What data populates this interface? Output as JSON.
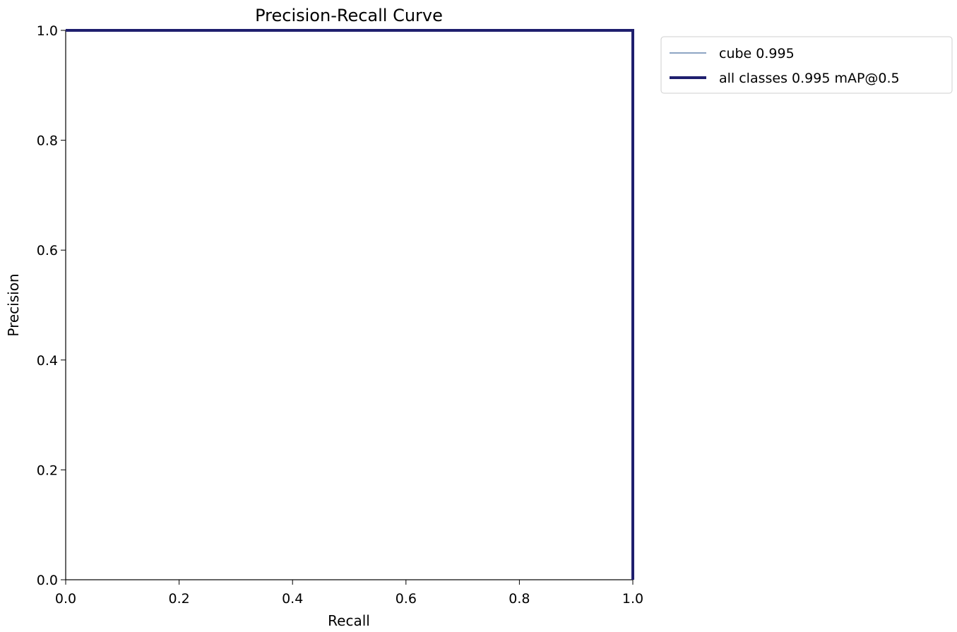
{
  "chart_data": {
    "type": "line",
    "title": "Precision-Recall Curve",
    "xlabel": "Recall",
    "ylabel": "Precision",
    "xlim": [
      0,
      1
    ],
    "ylim": [
      0,
      1
    ],
    "x_ticks": [
      "0.0",
      "0.2",
      "0.4",
      "0.6",
      "0.8",
      "1.0"
    ],
    "y_ticks": [
      "0.0",
      "0.2",
      "0.4",
      "0.6",
      "0.8",
      "1.0"
    ],
    "grid": false,
    "legend_position": "outside-top-right",
    "series": [
      {
        "name": "cube 0.995",
        "color": "#4a6fa0",
        "x": [
          0.0,
          0.995,
          1.0,
          1.0
        ],
        "y": [
          1.0,
          1.0,
          1.0,
          0.0
        ]
      },
      {
        "name": "all classes 0.995 mAP@0.5",
        "color": "#1f1f6e",
        "x": [
          0.0,
          0.995,
          1.0,
          1.0
        ],
        "y": [
          1.0,
          1.0,
          1.0,
          0.0
        ]
      }
    ]
  }
}
